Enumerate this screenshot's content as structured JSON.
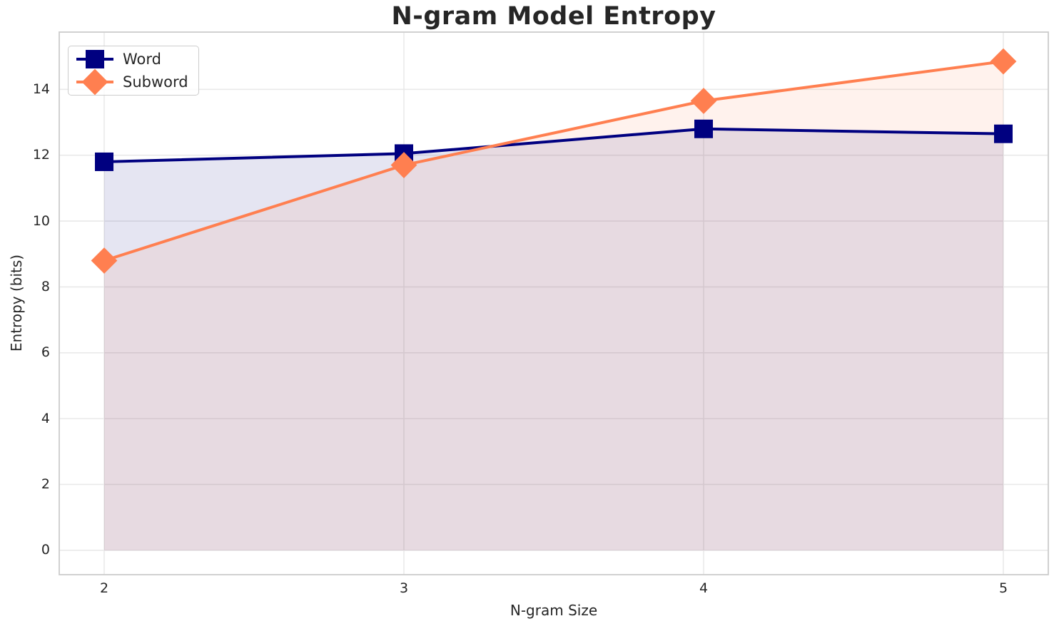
{
  "chart_data": {
    "type": "line",
    "title": "N-gram Model Entropy",
    "xlabel": "N-gram Size",
    "ylabel": "Entropy (bits)",
    "x": [
      2,
      3,
      4,
      5
    ],
    "series": [
      {
        "name": "Word",
        "values": [
          11.8,
          12.05,
          12.8,
          12.65
        ],
        "color": "#000080",
        "marker": "square",
        "fill_alpha": 0.1
      },
      {
        "name": "Subword",
        "values": [
          8.8,
          11.7,
          13.65,
          14.85
        ],
        "color": "#FF7F50",
        "marker": "diamond",
        "fill_alpha": 0.1
      }
    ],
    "x_ticks": [
      "2",
      "3",
      "4",
      "5"
    ],
    "y_ticks": [
      "0",
      "2",
      "4",
      "6",
      "8",
      "10",
      "12",
      "14"
    ],
    "xlim": [
      1.85,
      5.15
    ],
    "ylim": [
      -0.74,
      15.74
    ],
    "grid": true,
    "area_fill_baseline": 0,
    "legend_position": "upper left"
  },
  "colors": {
    "background": "#ffffff",
    "text": "#262626",
    "grid": "#e9e9e9",
    "spine": "#cccccc",
    "word": "#000080",
    "subword": "#FF7F50"
  }
}
